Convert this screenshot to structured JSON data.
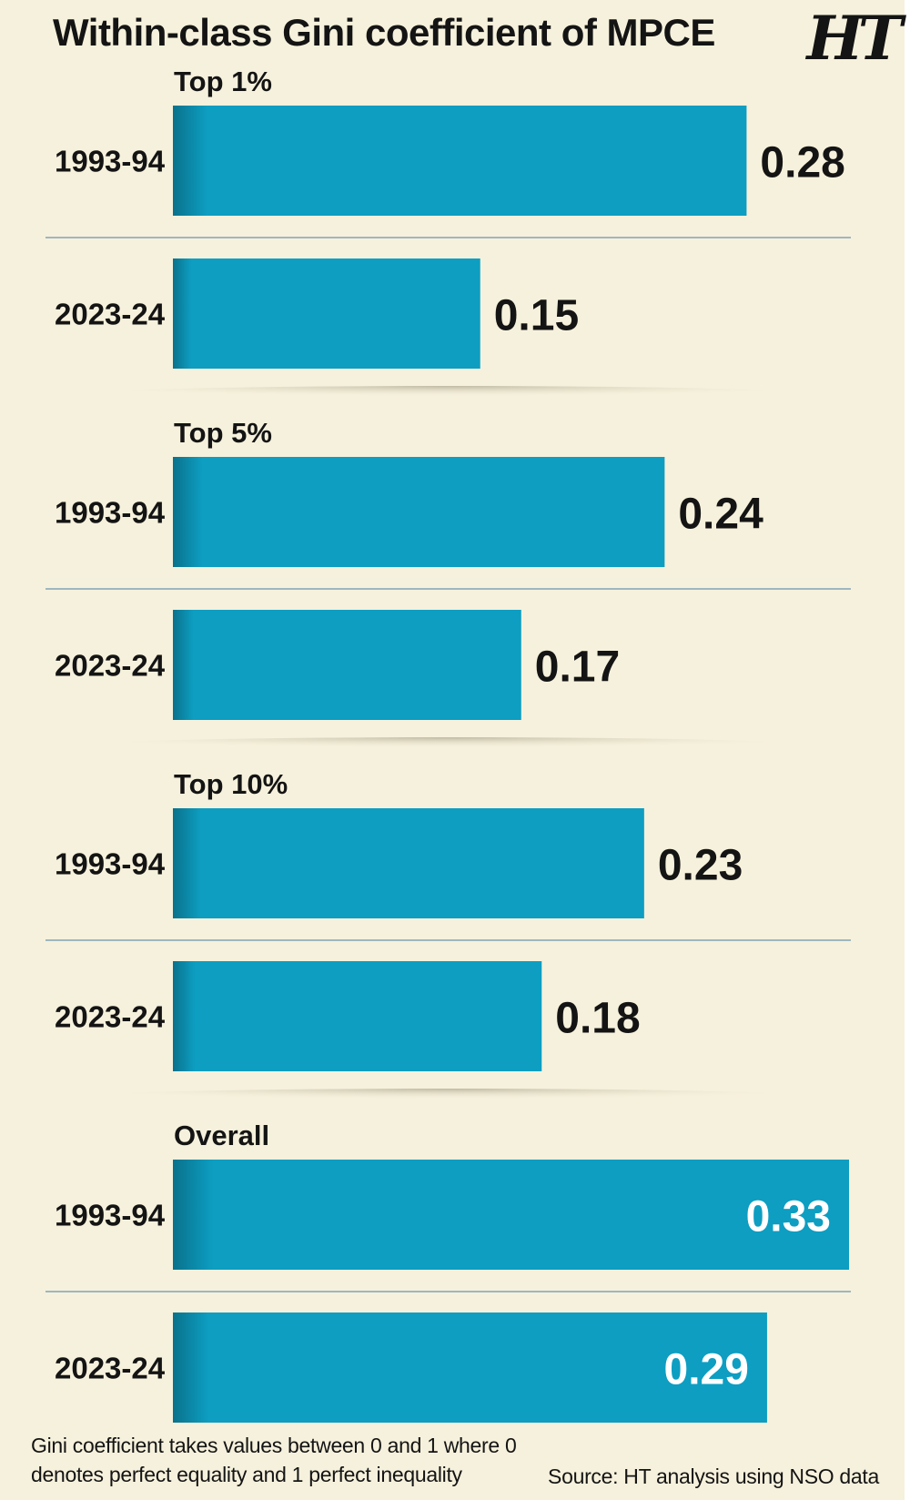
{
  "header": {
    "title": "Within-class Gini coefficient of MPCE",
    "logo_text": "HT"
  },
  "colors": {
    "background": "#f6f1dc",
    "bar": "#0d9ec2",
    "divider": "#9fb7bf",
    "text": "#141414",
    "inner_label": "#ffffff"
  },
  "chart_data": {
    "type": "bar",
    "orientation": "horizontal",
    "xlim": [
      0,
      0.33
    ],
    "groups": [
      {
        "name": "Top 1%",
        "categories": [
          "1993-94",
          "2023-24"
        ],
        "values": [
          0.28,
          0.15
        ]
      },
      {
        "name": "Top 5%",
        "categories": [
          "1993-94",
          "2023-24"
        ],
        "values": [
          0.24,
          0.17
        ]
      },
      {
        "name": "Top 10%",
        "categories": [
          "1993-94",
          "2023-24"
        ],
        "values": [
          0.23,
          0.18
        ]
      },
      {
        "name": "Overall",
        "categories": [
          "1993-94",
          "2023-24"
        ],
        "values": [
          0.33,
          0.29
        ]
      }
    ],
    "value_labels_inside_for": "Overall"
  },
  "footer": {
    "note": "Gini coefficient takes values between 0 and 1 where 0 denotes perfect equality and 1 perfect inequality",
    "source": "Source: HT analysis using NSO data"
  }
}
